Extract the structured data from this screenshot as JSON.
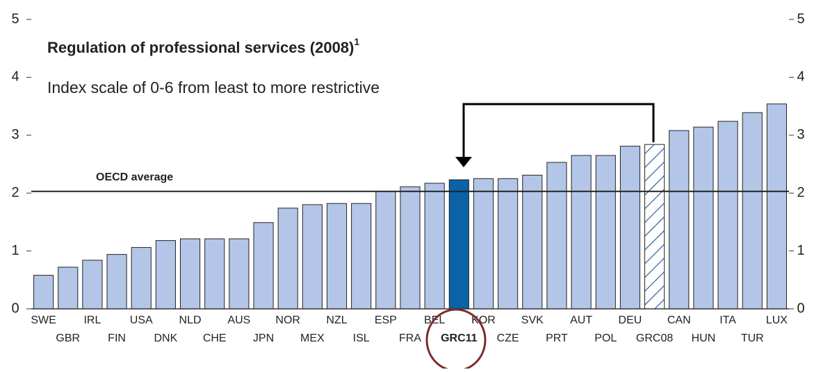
{
  "chart_data": {
    "type": "bar",
    "title": "Regulation of professional services (2008)",
    "title_note": "1",
    "subtitle": "Index scale of 0-6 from least to more restrictive",
    "categories": [
      "SWE",
      "GBR",
      "IRL",
      "FIN",
      "USA",
      "DNK",
      "NLD",
      "CHE",
      "AUS",
      "JPN",
      "NOR",
      "MEX",
      "NZL",
      "ISL",
      "ESP",
      "FRA",
      "BEL",
      "GRC11",
      "KOR",
      "CZE",
      "SVK",
      "PRT",
      "AUT",
      "POL",
      "DEU",
      "GRC08",
      "CAN",
      "HUN",
      "ITA",
      "TUR",
      "LUX"
    ],
    "values": [
      0.58,
      0.72,
      0.84,
      0.94,
      1.06,
      1.18,
      1.21,
      1.21,
      1.21,
      1.49,
      1.74,
      1.8,
      1.82,
      1.82,
      2.03,
      2.11,
      2.17,
      2.23,
      2.25,
      2.25,
      2.31,
      2.53,
      2.65,
      2.65,
      2.81,
      2.84,
      3.08,
      3.14,
      3.24,
      3.39,
      3.54
    ],
    "color": "#b4c6e8",
    "colors": [
      "#b4c6e8",
      "#b4c6e8",
      "#b4c6e8",
      "#b4c6e8",
      "#b4c6e8",
      "#b4c6e8",
      "#b4c6e8",
      "#b4c6e8",
      "#b4c6e8",
      "#b4c6e8",
      "#b4c6e8",
      "#b4c6e8",
      "#b4c6e8",
      "#b4c6e8",
      "#b4c6e8",
      "#b4c6e8",
      "#b4c6e8",
      "#0b62a6",
      "#b4c6e8",
      "#b4c6e8",
      "#b4c6e8",
      "#b4c6e8",
      "#b4c6e8",
      "#b4c6e8",
      "#b4c6e8",
      "hatched",
      "#b4c6e8",
      "#b4c6e8",
      "#b4c6e8",
      "#b4c6e8",
      "#b4c6e8"
    ],
    "hatch_color": "#2f64a8",
    "reference_line": {
      "label": "OECD average",
      "value": 2.03
    },
    "ylim": [
      0,
      5
    ],
    "yticks": [
      0,
      1,
      2,
      3,
      4,
      5
    ]
  }
}
